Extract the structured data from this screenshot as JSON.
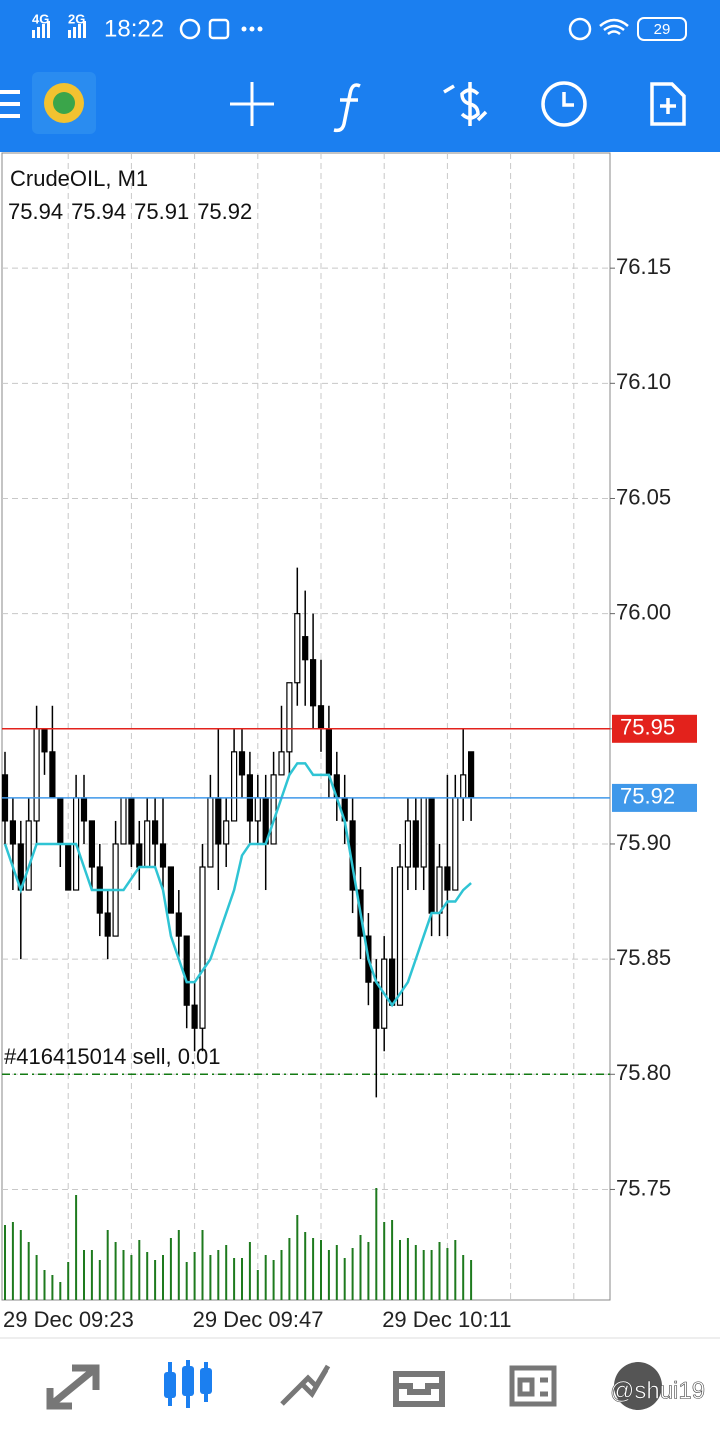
{
  "status_bar": {
    "network_1": "4G",
    "network_2": "2G",
    "time": "18:22",
    "battery": "29"
  },
  "chart_data": {
    "type": "candlestick",
    "title": "CrudeOIL, M1",
    "categories": [
      "29 Dec 09:23",
      null,
      null,
      null,
      null,
      null,
      null,
      null,
      null,
      null,
      null,
      null,
      null,
      null,
      null,
      null,
      null,
      null,
      null,
      null,
      null,
      null,
      null,
      null,
      "29 Dec 09:47",
      null,
      null,
      null,
      null,
      null,
      null,
      null,
      null,
      null,
      null,
      null,
      null,
      null,
      null,
      null,
      null,
      null,
      null,
      null,
      null,
      null,
      null,
      null,
      "29 Dec 10:11",
      null,
      null,
      null,
      null,
      null,
      null,
      null,
      null,
      null,
      null,
      null
    ],
    "open": [
      75.93,
      75.91,
      75.9,
      75.88,
      75.91,
      75.95,
      75.94,
      75.92,
      75.9,
      75.88,
      75.92,
      75.91,
      75.89,
      75.87,
      75.86,
      75.9,
      75.92,
      75.9,
      75.89,
      75.91,
      75.9,
      75.89,
      75.87,
      75.86,
      75.83,
      75.82,
      75.89,
      75.92,
      75.9,
      75.91,
      75.94,
      75.93,
      75.91,
      75.92,
      75.9,
      75.93,
      75.94,
      75.97,
      75.99,
      75.98,
      75.96,
      75.95,
      75.93,
      75.92,
      75.91,
      75.88,
      75.86,
      75.84,
      75.82,
      75.85,
      75.83,
      75.89,
      75.91,
      75.89,
      75.92,
      75.87,
      75.89,
      75.88,
      75.92,
      75.94
    ],
    "high": [
      75.94,
      75.92,
      75.91,
      75.92,
      75.96,
      75.95,
      75.96,
      75.92,
      75.9,
      75.93,
      75.93,
      75.91,
      75.9,
      75.88,
      75.91,
      75.92,
      75.92,
      75.91,
      75.92,
      75.92,
      75.92,
      75.89,
      75.88,
      75.86,
      75.84,
      75.9,
      75.93,
      75.95,
      75.92,
      75.95,
      75.95,
      75.94,
      75.93,
      75.93,
      75.94,
      75.96,
      75.97,
      76.02,
      76.01,
      76,
      75.98,
      75.96,
      75.94,
      75.93,
      75.92,
      75.89,
      75.87,
      75.85,
      75.86,
      75.89,
      75.9,
      75.92,
      75.92,
      75.92,
      75.92,
      75.9,
      75.93,
      75.93,
      75.95,
      75.94
    ],
    "low": [
      75.9,
      75.88,
      75.85,
      75.88,
      75.9,
      75.93,
      75.92,
      75.89,
      75.88,
      75.88,
      75.9,
      75.88,
      75.86,
      75.85,
      75.86,
      75.9,
      75.89,
      75.88,
      75.89,
      75.89,
      75.88,
      75.87,
      75.85,
      75.82,
      75.81,
      75.81,
      75.89,
      75.88,
      75.89,
      75.91,
      75.92,
      75.9,
      75.9,
      75.88,
      75.9,
      75.93,
      75.93,
      75.96,
      75.96,
      75.95,
      75.94,
      75.92,
      75.91,
      75.9,
      75.87,
      75.85,
      75.83,
      75.79,
      75.81,
      75.83,
      75.83,
      75.88,
      75.88,
      75.88,
      75.86,
      75.86,
      75.86,
      75.88,
      75.91,
      75.91
    ],
    "close": [
      75.91,
      75.9,
      75.88,
      75.91,
      75.95,
      75.94,
      75.92,
      75.9,
      75.88,
      75.92,
      75.91,
      75.89,
      75.87,
      75.86,
      75.9,
      75.92,
      75.9,
      75.89,
      75.91,
      75.9,
      75.89,
      75.87,
      75.86,
      75.83,
      75.82,
      75.89,
      75.92,
      75.9,
      75.91,
      75.94,
      75.93,
      75.91,
      75.92,
      75.9,
      75.93,
      75.94,
      75.97,
      76,
      75.98,
      75.96,
      75.95,
      75.93,
      75.92,
      75.91,
      75.88,
      75.86,
      75.84,
      75.82,
      75.85,
      75.83,
      75.89,
      75.91,
      75.89,
      75.92,
      75.87,
      75.89,
      75.88,
      75.92,
      75.93,
      75.92
    ],
    "up_color": "#ffffff",
    "down_color": "#000000",
    "ma": {
      "color": "#2fc4d4",
      "values": [
        75.9,
        75.89,
        75.88,
        75.89,
        75.9,
        75.9,
        75.9,
        75.9,
        75.9,
        75.9,
        75.89,
        75.88,
        75.88,
        75.88,
        75.88,
        75.88,
        75.885,
        75.89,
        75.89,
        75.89,
        75.88,
        75.86,
        75.85,
        75.84,
        75.84,
        75.845,
        75.85,
        75.86,
        75.87,
        75.88,
        75.895,
        75.9,
        75.9,
        75.9,
        75.91,
        75.92,
        75.93,
        75.935,
        75.935,
        75.93,
        75.93,
        75.93,
        75.92,
        75.91,
        75.89,
        75.87,
        75.85,
        75.84,
        75.835,
        75.83,
        75.835,
        75.84,
        75.85,
        75.86,
        75.87,
        75.87,
        75.875,
        75.875,
        75.88,
        75.883
      ]
    },
    "volume": {
      "color": "#1e7a1e",
      "values": [
        75,
        78,
        70,
        58,
        45,
        30,
        25,
        18,
        38,
        105,
        50,
        50,
        40,
        70,
        58,
        50,
        45,
        60,
        48,
        40,
        45,
        62,
        70,
        38,
        48,
        70,
        45,
        50,
        55,
        42,
        42,
        58,
        30,
        45,
        40,
        50,
        62,
        85,
        68,
        62,
        60,
        50,
        55,
        42,
        52,
        65,
        58,
        112,
        78,
        80,
        60,
        62,
        55,
        50,
        50,
        58,
        52,
        60,
        45,
        40
      ]
    },
    "ylim": [
      75.702,
      76.2
    ],
    "yticks": [
      75.75,
      {
        "value": 75.8,
        "label": "75.80"
      },
      75.85,
      {
        "value": 75.9,
        "label": "75.90"
      },
      75.95,
      {
        "value": 76,
        "label": "76.00"
      },
      76.05,
      {
        "value": 76.1,
        "label": "76.10"
      },
      76.15
    ],
    "grid": true,
    "price_lines": [
      {
        "value": 75.95,
        "color": "#e3221c"
      },
      {
        "value": 75.92,
        "color": "#3f98ea"
      }
    ],
    "order_lines": [
      {
        "label": "#416415014 sell, 0.01",
        "value": 75.8,
        "color": "#137a13"
      }
    ]
  },
  "watermark": "@shui19"
}
